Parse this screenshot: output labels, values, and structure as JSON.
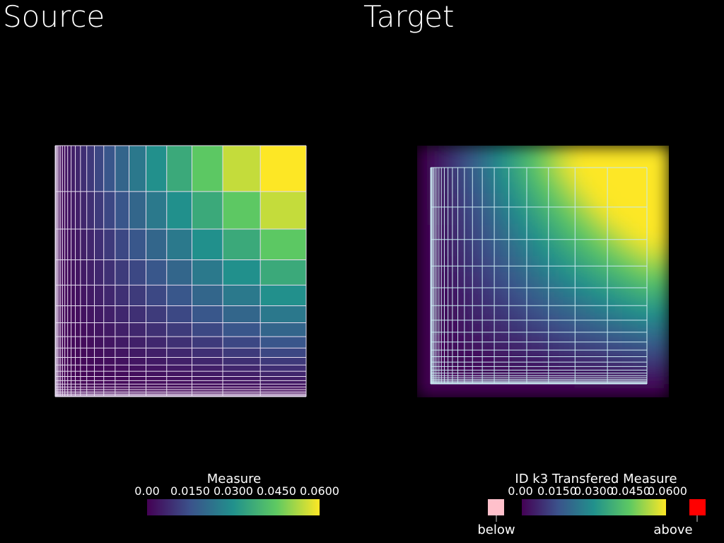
{
  "left": {
    "title": "Source",
    "scalar_bar": {
      "title": "Measure",
      "ticks": [
        "0.00",
        "0.0150",
        "0.0300",
        "0.0450",
        "0.0600"
      ]
    }
  },
  "right": {
    "title": "Target",
    "scalar_bar": {
      "title": "ID k3 Transfered Measure",
      "ticks": [
        "0.00",
        "0.0150",
        "0.0300",
        "0.0450",
        "0.0600"
      ],
      "below": "below",
      "above": "above"
    }
  }
}
